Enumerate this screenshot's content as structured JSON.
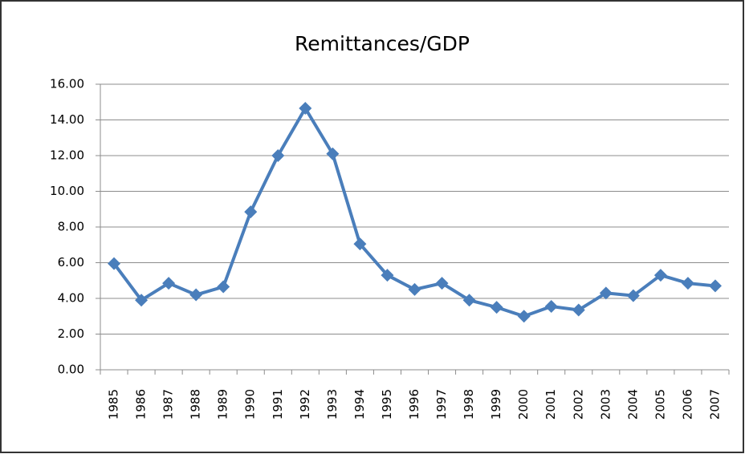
{
  "chart_data": {
    "type": "line",
    "title": "Remittances/GDP",
    "categories": [
      "1985",
      "1986",
      "1987",
      "1988",
      "1989",
      "1990",
      "1991",
      "1992",
      "1993",
      "1994",
      "1995",
      "1996",
      "1997",
      "1998",
      "1999",
      "2000",
      "2001",
      "2002",
      "2003",
      "2004",
      "2005",
      "2006",
      "2007"
    ],
    "values": [
      5.95,
      3.9,
      4.85,
      4.2,
      4.65,
      8.85,
      12.0,
      14.65,
      12.1,
      7.05,
      5.3,
      4.5,
      4.85,
      3.9,
      3.5,
      3.0,
      3.55,
      3.35,
      4.3,
      4.15,
      5.3,
      4.85,
      4.7
    ],
    "color": "#4a7ebb",
    "ylim": [
      0,
      16
    ],
    "yticks": [
      {
        "value": 0,
        "label": "0.00"
      },
      {
        "value": 2,
        "label": "2.00"
      },
      {
        "value": 4,
        "label": "4.00"
      },
      {
        "value": 6,
        "label": "6.00"
      },
      {
        "value": 8,
        "label": "8.00"
      },
      {
        "value": 10,
        "label": "10.00"
      },
      {
        "value": 12,
        "label": "12.00"
      },
      {
        "value": 14,
        "label": "14.00"
      },
      {
        "value": 16,
        "label": "16.00"
      }
    ],
    "grid": true
  }
}
